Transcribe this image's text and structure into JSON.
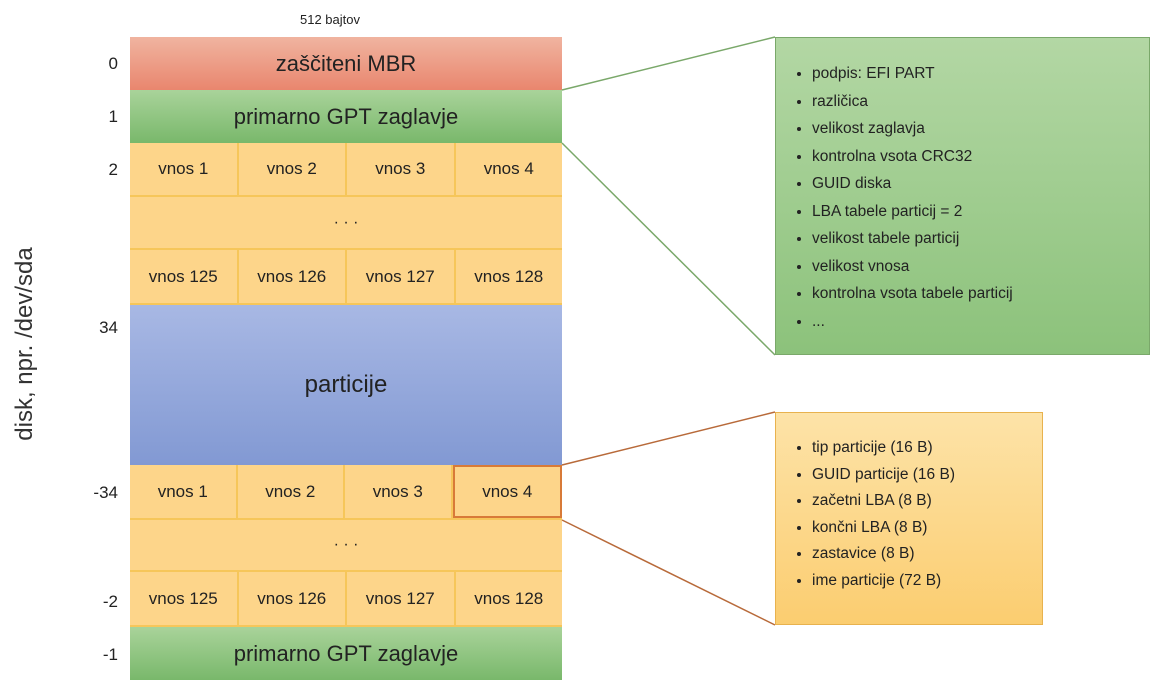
{
  "width_label": "512 bajtov",
  "axis_label": "disk, npr. /dev/sda",
  "lba_labels": [
    "0",
    "1",
    "2",
    "34",
    "-34",
    "-2",
    "-1"
  ],
  "blocks": {
    "mbr": "zaščiteni MBR",
    "primary_header": "primarno GPT zaglavje",
    "partitions": "particije",
    "backup_header": "primarno GPT zaglavje",
    "ellipsis": "· · ·"
  },
  "entries_first": [
    "vnos 1",
    "vnos 2",
    "vnos 3",
    "vnos 4"
  ],
  "entries_last": [
    "vnos 125",
    "vnos 126",
    "vnos 127",
    "vnos 128"
  ],
  "header_fields": [
    "podpis: EFI PART",
    "različica",
    "velikost zaglavja",
    "kontrolna vsota CRC32",
    "GUID diska",
    "LBA tabele particij = 2",
    "velikost tabele particij",
    "velikost vnosa",
    "kontrolna vsota tabele particij",
    "..."
  ],
  "entry_fields": [
    "tip particije (16 B)",
    "GUID particije (16 B)",
    "začetni LBA (8 B)",
    "končni LBA (8 B)",
    "zastavice (8 B)",
    "ime particije (72 B)"
  ],
  "colors": {
    "mbr": "#e9866e",
    "gpt": "#79b86b",
    "entry": "#fdd58a",
    "partition": "#8299d3",
    "green_line": "#7aa86a",
    "orange_line": "#b86a3a"
  }
}
